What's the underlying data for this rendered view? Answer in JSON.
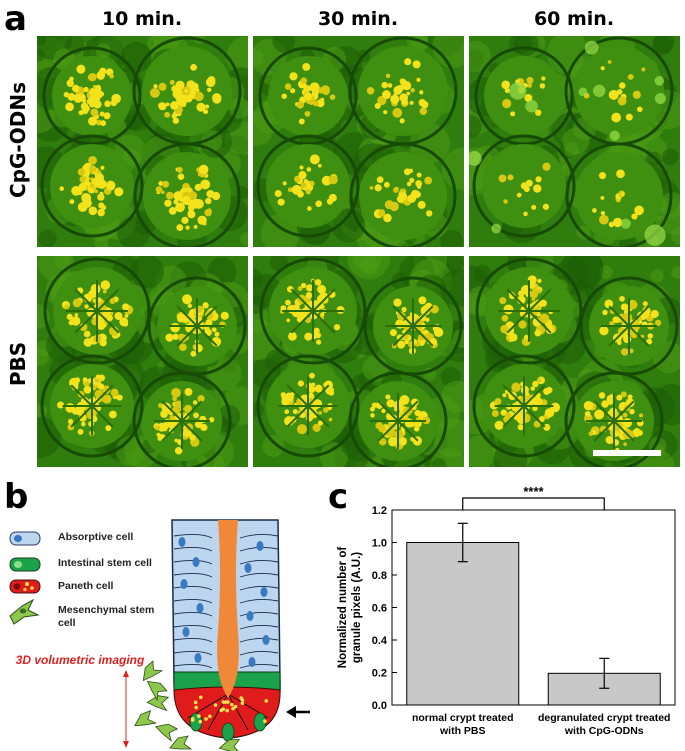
{
  "figure": {
    "panels": {
      "a": "a",
      "b": "b",
      "c": "c"
    },
    "columns": [
      "10 min.",
      "30 min.",
      "60 min."
    ],
    "rows": [
      "CpG-ODNs",
      "PBS"
    ]
  },
  "diagram": {
    "legend": [
      {
        "label": "Absorptive cell",
        "icon": "absorptive-cell-icon",
        "color": "#b8d4ee"
      },
      {
        "label": "Intestinal stem cell",
        "icon": "stem-cell-icon",
        "color": "#1aa34a"
      },
      {
        "label": "Paneth cell",
        "icon": "paneth-cell-icon",
        "color": "#e01b1b"
      },
      {
        "label": "Mesenchymal stem cell",
        "icon": "mesenchymal-cell-icon",
        "color": "#7cc242"
      }
    ],
    "imaging_label": "3D volumetric imaging",
    "colors": {
      "lumen": "#f0883a",
      "absorptive": "#bcd6ef",
      "nucleus": "#3a78c0",
      "stem": "#1aa34a",
      "paneth": "#e01b1b",
      "granule": "#ffe14a",
      "mesenchymal": "#8cc84b"
    }
  },
  "chart_data": {
    "type": "bar",
    "categories": [
      "normal crypt treated with PBS",
      "degranulated crypt treated with CpG-ODNs"
    ],
    "category_lines": [
      [
        "normal crypt treated",
        "with PBS"
      ],
      [
        "degranulated crypt treated",
        "with CpG-ODNs"
      ]
    ],
    "values": [
      1.0,
      0.195
    ],
    "errors": [
      0.118,
      0.092
    ],
    "ylabel": "Normalized number of granule pixels (A.U.)",
    "ylabel_lines": [
      "Normalized number of",
      "granule pixels (A.U.)"
    ],
    "ylim": [
      0,
      1.2
    ],
    "yticks": [
      "0.0",
      "0.2",
      "0.4",
      "0.6",
      "0.8",
      "1.0",
      "1.2"
    ],
    "significance": "****",
    "bar_color": "#c8c8c8"
  }
}
